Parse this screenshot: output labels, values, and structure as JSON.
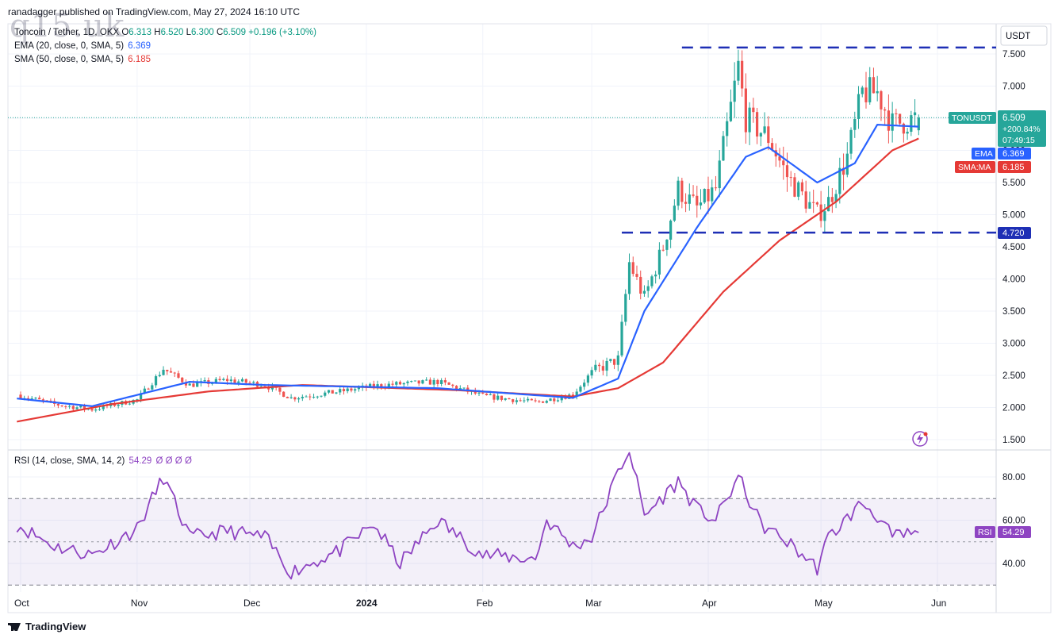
{
  "header": {
    "publisher": "ranadagger published on TradingView.com, May 27, 2024 16:10 UTC",
    "watermark": "q15.uk"
  },
  "legend": {
    "symbol_title": "Toncoin / Tether, 1D, OKX",
    "ohlc": {
      "o_label": "O",
      "o": "6.313",
      "h_label": "H",
      "h": "6.520",
      "l_label": "L",
      "l": "6.300",
      "c_label": "C",
      "c": "6.509",
      "change": "+0.196 (+3.10%)"
    },
    "ema": {
      "label": "EMA (20, close, 0, SMA, 5)",
      "value": "6.369"
    },
    "sma": {
      "label": "SMA (50, close, 0, SMA, 5)",
      "value": "6.185"
    }
  },
  "colors": {
    "ema": "#2962ff",
    "sma": "#e53935",
    "up": "#26a69a",
    "down": "#ef5350",
    "rsi": "#8e44c2",
    "hline": "#1e2fb5"
  },
  "rsi_legend": {
    "label": "RSI (14, close, SMA, 14, 2)",
    "value": "54.29",
    "extra": "Ø Ø Ø Ø"
  },
  "badges": {
    "currency": "USDT",
    "symbol": "TONUSDT",
    "price": "6.509",
    "pct": "+200.84%",
    "countdown": "07:49:15",
    "ema_label": "EMA",
    "ema_value": "6.369",
    "sma_label": "SMA:MA",
    "sma_value": "6.185",
    "support": "4.720",
    "rsi_label": "RSI",
    "rsi_value": "54.29"
  },
  "footer": {
    "brand": "TradingView"
  },
  "chart_data": {
    "type": "candlestick",
    "price_axis": {
      "ticks": [
        7.5,
        7.0,
        6.5,
        6.0,
        5.5,
        5.0,
        4.5,
        4.0,
        3.5,
        3.0,
        2.5,
        2.0,
        1.5
      ],
      "labels": [
        "7.500",
        "7.000",
        "6.500",
        "6.000",
        "5.500",
        "5.000",
        "4.500",
        "4.000",
        "3.500",
        "3.000",
        "2.500",
        "2.000",
        "1.500"
      ]
    },
    "time_axis": {
      "labels": [
        "Oct",
        "Nov",
        "Dec",
        "2024",
        "Feb",
        "Mar",
        "Apr",
        "May",
        "Jun"
      ],
      "dates": [
        "2023-10-01",
        "2023-11-01",
        "2023-12-01",
        "2024-01-01",
        "2024-02-01",
        "2024-03-01",
        "2024-04-01",
        "2024-05-01",
        "2024-06-01"
      ]
    },
    "horizontal_levels": [
      7.6,
      4.72
    ],
    "price_keypoints": [
      {
        "date": "2023-09-30",
        "close": 2.2
      },
      {
        "date": "2023-10-10",
        "close": 2.05
      },
      {
        "date": "2023-10-20",
        "close": 1.97
      },
      {
        "date": "2023-11-01",
        "close": 2.12
      },
      {
        "date": "2023-11-08",
        "close": 2.6
      },
      {
        "date": "2023-11-15",
        "close": 2.35
      },
      {
        "date": "2023-11-25",
        "close": 2.43
      },
      {
        "date": "2023-12-05",
        "close": 2.35
      },
      {
        "date": "2023-12-12",
        "close": 2.15
      },
      {
        "date": "2023-12-25",
        "close": 2.25
      },
      {
        "date": "2024-01-05",
        "close": 2.35
      },
      {
        "date": "2024-01-20",
        "close": 2.4
      },
      {
        "date": "2024-02-01",
        "close": 2.18
      },
      {
        "date": "2024-02-15",
        "close": 2.08
      },
      {
        "date": "2024-02-25",
        "close": 2.2
      },
      {
        "date": "2024-03-01",
        "close": 2.55
      },
      {
        "date": "2024-03-08",
        "close": 2.75
      },
      {
        "date": "2024-03-11",
        "close": 4.25
      },
      {
        "date": "2024-03-15",
        "close": 3.7
      },
      {
        "date": "2024-03-20",
        "close": 4.5
      },
      {
        "date": "2024-03-24",
        "close": 5.4
      },
      {
        "date": "2024-03-29",
        "close": 5.1
      },
      {
        "date": "2024-04-03",
        "close": 5.4
      },
      {
        "date": "2024-04-09",
        "close": 7.3
      },
      {
        "date": "2024-04-11",
        "close": 6.5
      },
      {
        "date": "2024-04-17",
        "close": 6.2
      },
      {
        "date": "2024-04-22",
        "close": 5.6
      },
      {
        "date": "2024-04-30",
        "close": 5.0
      },
      {
        "date": "2024-05-03",
        "close": 5.2
      },
      {
        "date": "2024-05-08",
        "close": 5.9
      },
      {
        "date": "2024-05-12",
        "close": 6.9
      },
      {
        "date": "2024-05-16",
        "close": 6.9
      },
      {
        "date": "2024-05-20",
        "close": 6.4
      },
      {
        "date": "2024-05-27",
        "close": 6.509
      }
    ],
    "ema20_keypoints": [
      {
        "date": "2023-09-30",
        "v": 2.14
      },
      {
        "date": "2023-10-20",
        "v": 2.02
      },
      {
        "date": "2023-11-15",
        "v": 2.4
      },
      {
        "date": "2023-12-05",
        "v": 2.35
      },
      {
        "date": "2024-01-20",
        "v": 2.3
      },
      {
        "date": "2024-02-25",
        "v": 2.15
      },
      {
        "date": "2024-03-08",
        "v": 2.45
      },
      {
        "date": "2024-03-15",
        "v": 3.5
      },
      {
        "date": "2024-03-29",
        "v": 4.8
      },
      {
        "date": "2024-04-11",
        "v": 5.9
      },
      {
        "date": "2024-04-17",
        "v": 6.05
      },
      {
        "date": "2024-04-30",
        "v": 5.5
      },
      {
        "date": "2024-05-10",
        "v": 5.8
      },
      {
        "date": "2024-05-16",
        "v": 6.4
      },
      {
        "date": "2024-05-27",
        "v": 6.369
      }
    ],
    "sma50_keypoints": [
      {
        "date": "2023-09-30",
        "v": 1.78
      },
      {
        "date": "2023-10-25",
        "v": 2.05
      },
      {
        "date": "2023-11-20",
        "v": 2.25
      },
      {
        "date": "2023-12-15",
        "v": 2.35
      },
      {
        "date": "2024-01-25",
        "v": 2.27
      },
      {
        "date": "2024-02-25",
        "v": 2.17
      },
      {
        "date": "2024-03-08",
        "v": 2.3
      },
      {
        "date": "2024-03-20",
        "v": 2.7
      },
      {
        "date": "2024-04-05",
        "v": 3.8
      },
      {
        "date": "2024-04-20",
        "v": 4.6
      },
      {
        "date": "2024-05-05",
        "v": 5.2
      },
      {
        "date": "2024-05-20",
        "v": 6.0
      },
      {
        "date": "2024-05-27",
        "v": 6.185
      }
    ],
    "rsi": {
      "ticks": [
        80,
        60,
        40
      ],
      "labels": [
        "80.00",
        "60.00",
        "40.00"
      ],
      "bands": [
        70,
        30
      ],
      "keypoints": [
        {
          "date": "2023-09-30",
          "v": 58
        },
        {
          "date": "2023-10-10",
          "v": 48
        },
        {
          "date": "2023-10-20",
          "v": 44
        },
        {
          "date": "2023-11-01",
          "v": 56
        },
        {
          "date": "2023-11-08",
          "v": 80
        },
        {
          "date": "2023-11-15",
          "v": 52
        },
        {
          "date": "2023-11-25",
          "v": 55
        },
        {
          "date": "2023-12-05",
          "v": 52
        },
        {
          "date": "2023-12-12",
          "v": 36
        },
        {
          "date": "2023-12-25",
          "v": 46
        },
        {
          "date": "2024-01-03",
          "v": 58
        },
        {
          "date": "2024-01-10",
          "v": 40
        },
        {
          "date": "2024-01-20",
          "v": 60
        },
        {
          "date": "2024-02-01",
          "v": 44
        },
        {
          "date": "2024-02-15",
          "v": 42
        },
        {
          "date": "2024-02-18",
          "v": 60
        },
        {
          "date": "2024-02-25",
          "v": 48
        },
        {
          "date": "2024-03-01",
          "v": 52
        },
        {
          "date": "2024-03-08",
          "v": 82
        },
        {
          "date": "2024-03-11",
          "v": 93
        },
        {
          "date": "2024-03-15",
          "v": 62
        },
        {
          "date": "2024-03-24",
          "v": 78
        },
        {
          "date": "2024-03-29",
          "v": 65
        },
        {
          "date": "2024-04-03",
          "v": 60
        },
        {
          "date": "2024-04-09",
          "v": 80
        },
        {
          "date": "2024-04-15",
          "v": 58
        },
        {
          "date": "2024-04-22",
          "v": 50
        },
        {
          "date": "2024-04-30",
          "v": 38
        },
        {
          "date": "2024-05-03",
          "v": 52
        },
        {
          "date": "2024-05-12",
          "v": 68
        },
        {
          "date": "2024-05-16",
          "v": 62
        },
        {
          "date": "2024-05-20",
          "v": 52
        },
        {
          "date": "2024-05-27",
          "v": 54.29
        }
      ]
    }
  }
}
